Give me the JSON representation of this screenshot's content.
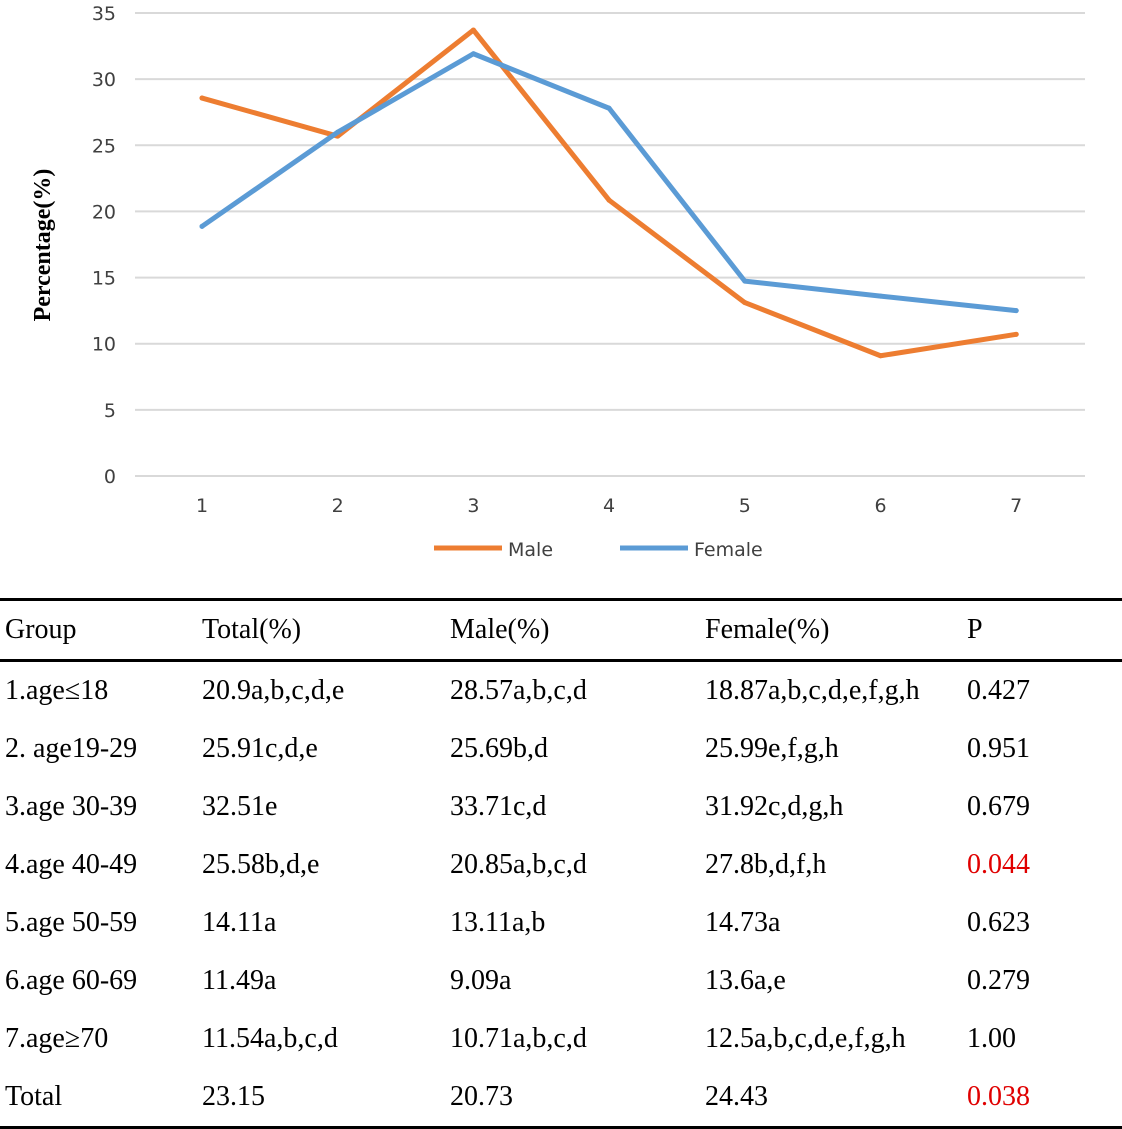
{
  "chart_data": {
    "type": "line",
    "title": "",
    "xlabel": "",
    "ylabel": "Percentage(%)",
    "categories": [
      "1",
      "2",
      "3",
      "4",
      "5",
      "6",
      "7"
    ],
    "y_ticks": [
      "0",
      "5",
      "10",
      "15",
      "20",
      "25",
      "30",
      "35"
    ],
    "ylim": [
      0,
      35
    ],
    "grid": true,
    "legend_position": "bottom",
    "series": [
      {
        "name": "Male",
        "color": "#ed7d31",
        "values": [
          28.57,
          25.69,
          33.71,
          20.85,
          13.11,
          9.09,
          10.71
        ]
      },
      {
        "name": "Female",
        "color": "#5b9bd5",
        "values": [
          18.87,
          25.99,
          31.92,
          27.8,
          14.73,
          13.6,
          12.5
        ]
      }
    ]
  },
  "table": {
    "headers": [
      "Group",
      "Total(%)",
      "Male(%)",
      "Female(%)",
      "P"
    ],
    "rows": [
      {
        "cells": [
          "1.age≤18",
          "20.9a,b,c,d,e",
          "28.57a,b,c,d",
          "18.87a,b,c,d,e,f,g,h",
          "0.427"
        ],
        "p_significant": false
      },
      {
        "cells": [
          "2. age19-29",
          "25.91c,d,e",
          "25.69b,d",
          "25.99e,f,g,h",
          "0.951"
        ],
        "p_significant": false
      },
      {
        "cells": [
          "3.age 30-39",
          "32.51e",
          "33.71c,d",
          "31.92c,d,g,h",
          "0.679"
        ],
        "p_significant": false
      },
      {
        "cells": [
          "4.age 40-49",
          "25.58b,d,e",
          "20.85a,b,c,d",
          "27.8b,d,f,h",
          "0.044"
        ],
        "p_significant": true
      },
      {
        "cells": [
          "5.age 50-59",
          "14.11a",
          "13.11a,b",
          "14.73a",
          "0.623"
        ],
        "p_significant": false
      },
      {
        "cells": [
          "6.age 60-69",
          "11.49a",
          "9.09a",
          "13.6a,e",
          "0.279"
        ],
        "p_significant": false
      },
      {
        "cells": [
          "7.age≥70",
          "11.54a,b,c,d",
          "10.71a,b,c,d",
          "12.5a,b,c,d,e,f,g,h",
          "1.00"
        ],
        "p_significant": false
      },
      {
        "cells": [
          "Total",
          "23.15",
          "20.73",
          "24.43",
          "0.038"
        ],
        "p_significant": true
      }
    ]
  }
}
